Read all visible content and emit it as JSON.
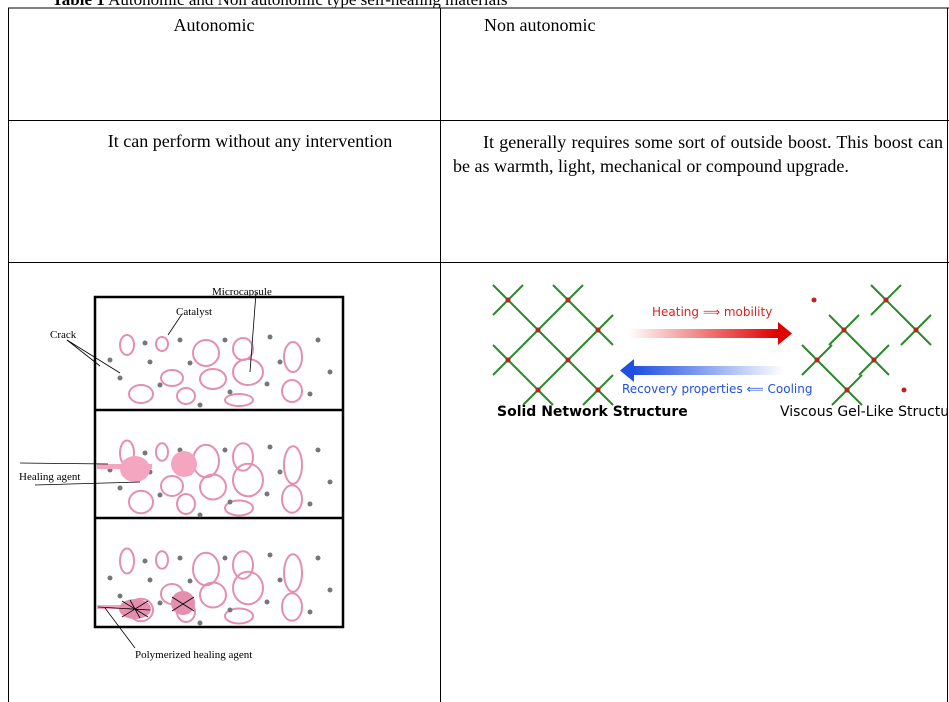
{
  "caption": {
    "label": "Table 1",
    "text": "Autonomic and Non autonomic type self-healing materials"
  },
  "table": {
    "header": [
      "Autonomic",
      "Non autonomic"
    ],
    "rows": [
      [
        "It can perform without any intervention",
        "It generally requires some sort of outside boost. This boost can be as warmth, light, mechanical or compound upgrade."
      ]
    ]
  },
  "figures": {
    "autonomic": {
      "labels": {
        "microcapsule": "Microcapsule",
        "catalyst": "Catalyst",
        "crack": "Crack",
        "healing_agent": "Healing agent",
        "polymerized": "Polymerized healing agent"
      }
    },
    "non_autonomic": {
      "heating": "Heating ⟹ mobility",
      "cooling": "Recovery properties ⟸ Cooling",
      "solid": "Solid Network Structure",
      "viscous": "Viscous Gel-Like Structure"
    }
  }
}
